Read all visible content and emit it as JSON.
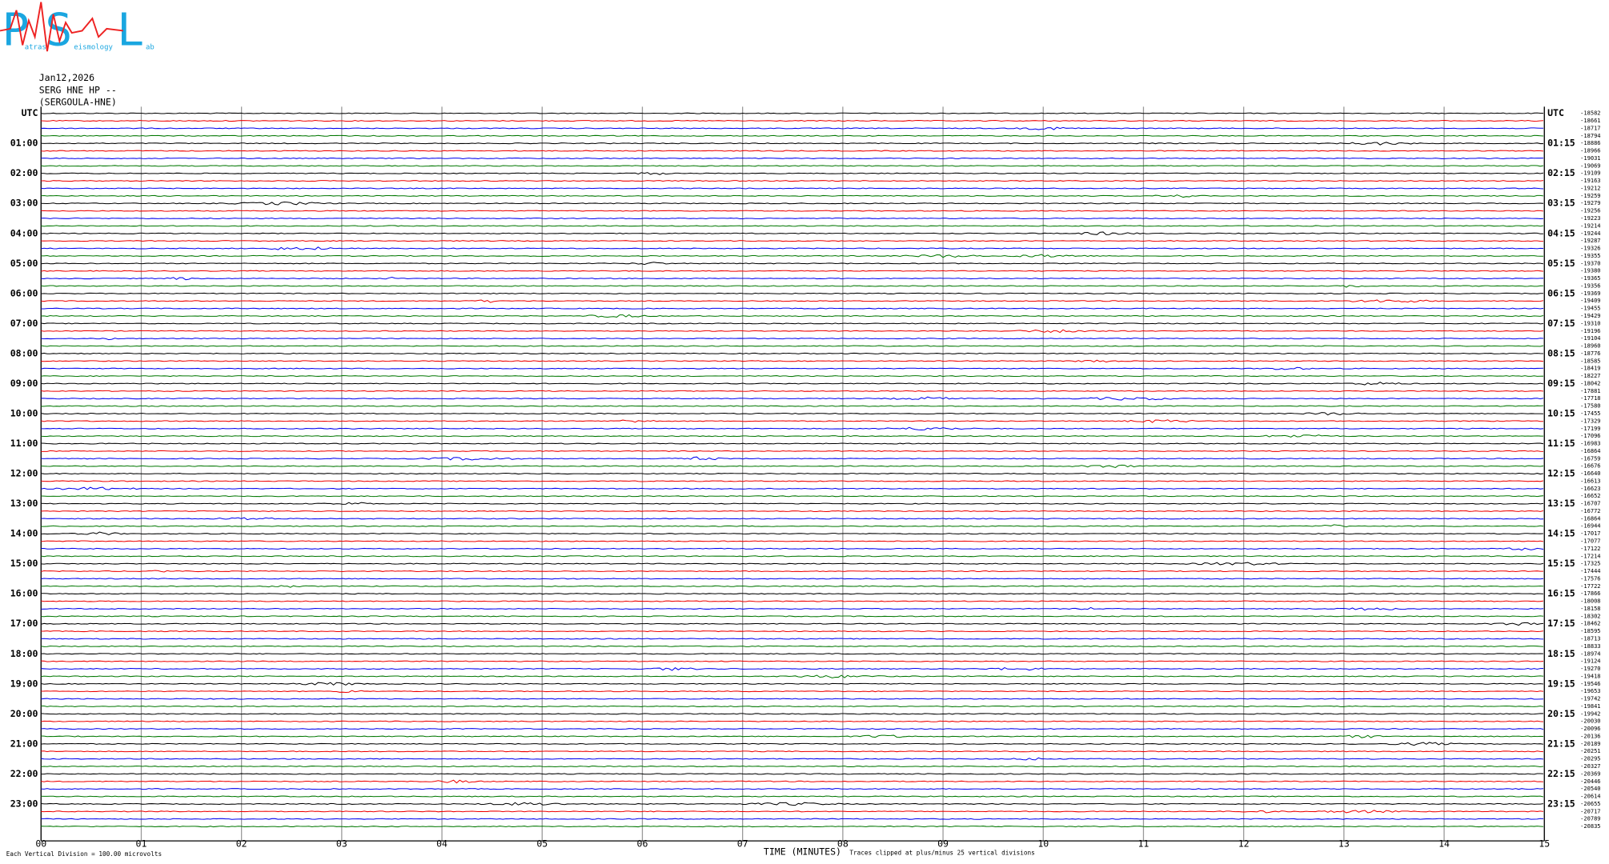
{
  "logo": {
    "letters": [
      "P",
      "S",
      "L"
    ],
    "words": [
      "atras",
      "eismology",
      "ab"
    ]
  },
  "header": {
    "date": "Jan12,2026",
    "channel": "SERG HNE HP --",
    "station": "(SERGOULA-HNE)"
  },
  "left_labels": [
    "UTC",
    "01:00",
    "02:00",
    "03:00",
    "04:00",
    "05:00",
    "06:00",
    "07:00",
    "08:00",
    "09:00",
    "10:00",
    "11:00",
    "12:00",
    "13:00",
    "14:00",
    "15:00",
    "16:00",
    "17:00",
    "18:00",
    "19:00",
    "20:00",
    "21:00",
    "22:00",
    "23:00"
  ],
  "right_labels": [
    "UTC",
    "01:15",
    "02:15",
    "03:15",
    "04:15",
    "05:15",
    "06:15",
    "07:15",
    "08:15",
    "09:15",
    "10:15",
    "11:15",
    "12:15",
    "13:15",
    "14:15",
    "15:15",
    "16:15",
    "17:15",
    "18:15",
    "19:15",
    "20:15",
    "21:15",
    "22:15",
    "23:15"
  ],
  "offsets": [
    -18582,
    -18661,
    -18717,
    -18794,
    -18886,
    -18966,
    -19031,
    -19069,
    -19109,
    -19163,
    -19212,
    -19259,
    -19279,
    -19256,
    -19223,
    -19214,
    -19244,
    -19287,
    -19326,
    -19355,
    -19370,
    -19380,
    -19365,
    -19356,
    -19369,
    -19409,
    -19455,
    -19429,
    -19310,
    -19196,
    -19104,
    -18960,
    -18776,
    -18585,
    -18419,
    -18227,
    -18042,
    -17881,
    -17718,
    -17580,
    -17455,
    -17329,
    -17199,
    -17096,
    -16983,
    -16864,
    -16759,
    -16676,
    -16640,
    -16613,
    -16623,
    -16652,
    -16707,
    -16772,
    -16864,
    -16944,
    -17017,
    -17077,
    -17122,
    -17214,
    -17325,
    -17444,
    -17576,
    -17722,
    -17866,
    -18008,
    -18158,
    -18302,
    -18462,
    -18595,
    -18713,
    -18833,
    -18974,
    -19124,
    -19270,
    -19418,
    -19546,
    -19653,
    -19742,
    -19841,
    -19942,
    -20030,
    -20096,
    -20136,
    -20189,
    -20251,
    -20295,
    -20327,
    -20369,
    -20446,
    -20540,
    -20614,
    -20655,
    -20717,
    -20789,
    -20835
  ],
  "x_axis": {
    "ticks": [
      "00",
      "01",
      "02",
      "03",
      "04",
      "05",
      "06",
      "07",
      "08",
      "09",
      "10",
      "11",
      "12",
      "13",
      "14",
      "15"
    ],
    "title": "TIME (MINUTES)"
  },
  "footer": {
    "scale": "Each Vertical Division =  100.00 microvolts",
    "clip": "Traces clipped at plus/minus 25 vertical divisions"
  }
}
